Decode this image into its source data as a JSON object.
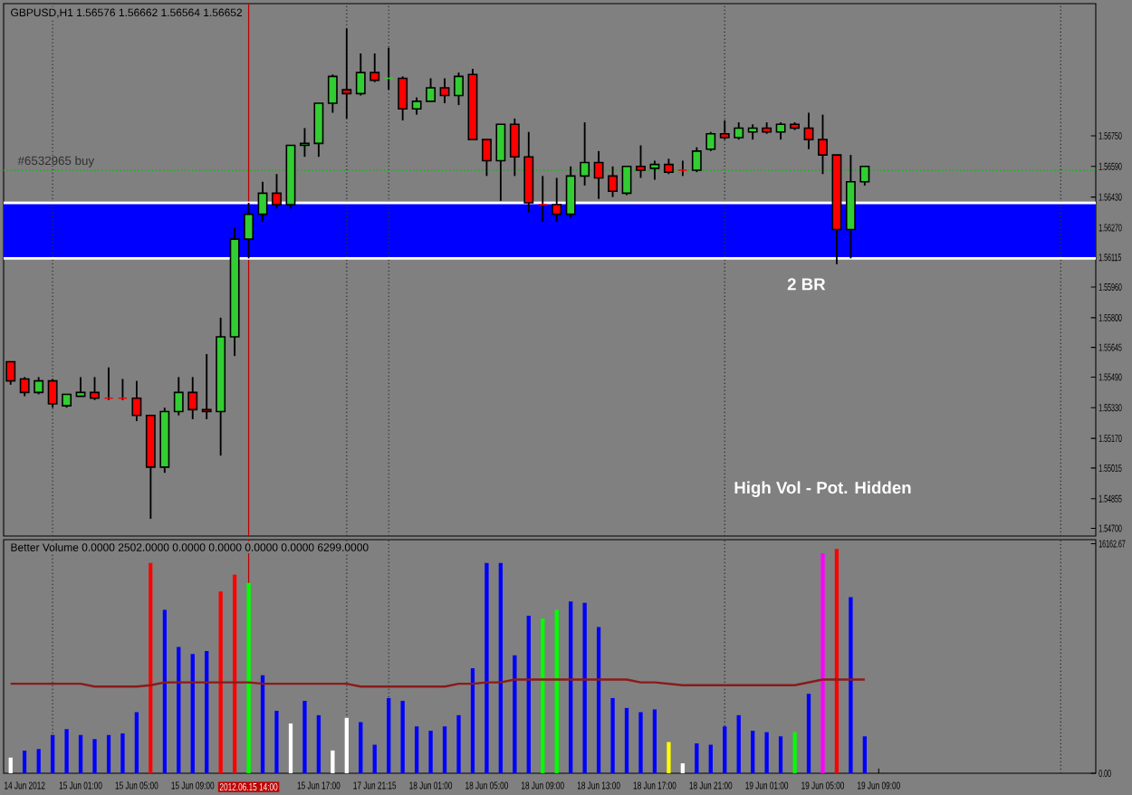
{
  "chart_data": [
    {
      "type": "candlestick",
      "title": "GBPUSD,H1 1.56576 1.56662 1.56564 1.56652",
      "categories": [
        null,
        null,
        null,
        null,
        null,
        null,
        null,
        null,
        null,
        null,
        null,
        null,
        null,
        null,
        null,
        null,
        null,
        null,
        null,
        null,
        null,
        null,
        null,
        null,
        null,
        null,
        null,
        null,
        null,
        null,
        null,
        null,
        null,
        null,
        null,
        null,
        null,
        null,
        null,
        null,
        null,
        null,
        null,
        null,
        null,
        null,
        null,
        null,
        null,
        null,
        null,
        null,
        null,
        null,
        null,
        null,
        null,
        null,
        null,
        null,
        null,
        null,
        null,
        null,
        null,
        null,
        null,
        null,
        null,
        null,
        null,
        null,
        null,
        null,
        null,
        null,
        null,
        null
      ],
      "ohlc": [
        [
          1.5557,
          1.5557,
          1.5545,
          1.5547
        ],
        [
          1.5548,
          1.5549,
          1.5539,
          1.5541
        ],
        [
          1.5541,
          1.5549,
          1.554,
          1.5547
        ],
        [
          1.5547,
          1.5548,
          1.5533,
          1.5535
        ],
        [
          1.5534,
          1.554,
          1.5533,
          1.554
        ],
        [
          1.5539,
          1.5549,
          1.5539,
          1.5541
        ],
        [
          1.5541,
          1.5549,
          1.5537,
          1.5538
        ],
        [
          1.5538,
          1.5554,
          1.5537,
          1.5538
        ],
        [
          1.5538,
          1.5548,
          1.5537,
          1.5538
        ],
        [
          1.5538,
          1.5547,
          1.5526,
          1.5529
        ],
        [
          1.5529,
          1.5529,
          1.5475,
          1.5502
        ],
        [
          1.5502,
          1.5533,
          1.5499,
          1.5531
        ],
        [
          1.5531,
          1.5549,
          1.5529,
          1.5541
        ],
        [
          1.5541,
          1.5549,
          1.5527,
          1.5532
        ],
        [
          1.5532,
          1.5561,
          1.5527,
          1.5531
        ],
        [
          1.5531,
          1.558,
          1.5508,
          1.557
        ],
        [
          1.557,
          1.5627,
          1.556,
          1.5621
        ],
        [
          1.5621,
          1.564,
          1.5611,
          1.5634
        ],
        [
          1.5634,
          1.5651,
          1.563,
          1.5645
        ],
        [
          1.5645,
          1.5655,
          1.5637,
          1.5639
        ],
        [
          1.5639,
          1.567,
          1.5637,
          1.567
        ],
        [
          1.567,
          1.5679,
          1.5664,
          1.5671
        ],
        [
          1.5671,
          1.5692,
          1.5664,
          1.5692
        ],
        [
          1.5692,
          1.5707,
          1.5687,
          1.5706
        ],
        [
          1.5699,
          1.5731,
          1.5684,
          1.5697
        ],
        [
          1.5697,
          1.5718,
          1.5696,
          1.5708
        ],
        [
          1.5708,
          1.5718,
          1.5703,
          1.5704
        ],
        [
          1.5705,
          1.5721,
          1.5699,
          1.5705
        ],
        [
          1.5705,
          1.5706,
          1.5683,
          1.5689
        ],
        [
          1.5689,
          1.5695,
          1.5686,
          1.5693
        ],
        [
          1.5693,
          1.5705,
          1.5693,
          1.57
        ],
        [
          1.57,
          1.5705,
          1.5692,
          1.5696
        ],
        [
          1.5696,
          1.5708,
          1.5691,
          1.5706
        ],
        [
          1.5707,
          1.571,
          1.5673,
          1.5673
        ],
        [
          1.5673,
          1.5673,
          1.5654,
          1.5662
        ],
        [
          1.5662,
          1.5681,
          1.5641,
          1.5681
        ],
        [
          1.5681,
          1.5684,
          1.5654,
          1.5664
        ],
        [
          1.5664,
          1.5677,
          1.5635,
          1.564
        ],
        [
          1.5639,
          1.5654,
          1.563,
          1.5639
        ],
        [
          1.5639,
          1.5653,
          1.563,
          1.5634
        ],
        [
          1.5634,
          1.5659,
          1.5632,
          1.5654
        ],
        [
          1.5654,
          1.5682,
          1.5649,
          1.5661
        ],
        [
          1.5661,
          1.5667,
          1.5642,
          1.5653
        ],
        [
          1.5654,
          1.5659,
          1.5643,
          1.5646
        ],
        [
          1.5645,
          1.5659,
          1.5644,
          1.5659
        ],
        [
          1.5659,
          1.567,
          1.5653,
          1.5657
        ],
        [
          1.5658,
          1.5662,
          1.5652,
          1.566
        ],
        [
          1.566,
          1.5663,
          1.5655,
          1.5656
        ],
        [
          1.5657,
          1.5662,
          1.5654,
          1.5657
        ],
        [
          1.5657,
          1.5669,
          1.5656,
          1.5667
        ],
        [
          1.5668,
          1.5677,
          1.5667,
          1.5676
        ],
        [
          1.5676,
          1.5683,
          1.5673,
          1.5674
        ],
        [
          1.5674,
          1.5682,
          1.5673,
          1.5679
        ],
        [
          1.5677,
          1.5681,
          1.5673,
          1.5679
        ],
        [
          1.5679,
          1.5682,
          1.5676,
          1.5677
        ],
        [
          1.5677,
          1.5682,
          1.5673,
          1.5681
        ],
        [
          1.5681,
          1.5682,
          1.5678,
          1.5679
        ],
        [
          1.5679,
          1.5687,
          1.5668,
          1.5673
        ],
        [
          1.5673,
          1.5686,
          1.5655,
          1.5665
        ],
        [
          1.5665,
          1.5665,
          1.5608,
          1.5626
        ],
        [
          1.5626,
          1.5665,
          1.5611,
          1.5651
        ],
        [
          1.5651,
          1.5659,
          1.5649,
          1.5659
        ],
        null,
        null,
        null,
        null,
        null,
        null,
        null,
        null,
        null,
        null,
        null,
        null,
        null,
        null,
        null,
        null
      ],
      "colors": [
        "#ff0000",
        "#ff0000",
        "#32cd32",
        "#ff0000",
        "#32cd32",
        "#32cd32",
        "#ff0000",
        "#ff0000",
        "#ff0000",
        "#ff0000",
        "#ff0000",
        "#32cd32",
        "#32cd32",
        "#ff0000",
        "#ff0000",
        "#32cd32",
        "#32cd32",
        "#32cd32",
        "#32cd32",
        "#ff0000",
        "#32cd32",
        "#32cd32",
        "#32cd32",
        "#32cd32",
        "#ff0000",
        "#32cd32",
        "#ff0000",
        "#32cd32",
        "#ff0000",
        "#32cd32",
        "#32cd32",
        "#ff0000",
        "#32cd32",
        "#ff0000",
        "#ff0000",
        "#32cd32",
        "#ff0000",
        "#ff0000",
        "#ff0000",
        "#ff0000",
        "#32cd32",
        "#32cd32",
        "#ff0000",
        "#ff0000",
        "#32cd32",
        "#ff0000",
        "#32cd32",
        "#ff0000",
        "#ff0000",
        "#32cd32",
        "#32cd32",
        "#ff0000",
        "#32cd32",
        "#32cd32",
        "#ff0000",
        "#32cd32",
        "#ff0000",
        "#ff0000",
        "#ff0000",
        "#ff0000",
        "#32cd32",
        "#32cd32",
        null,
        null,
        null,
        null,
        null,
        null,
        null,
        null,
        null,
        null,
        null,
        null,
        null,
        null,
        null,
        null
      ],
      "ylim": [
        1.5466,
        1.5744
      ],
      "yticks": [
        {
          "value": 1.5675,
          "label": "1.56750"
        },
        {
          "value": 1.5659,
          "label": "1.56590"
        },
        {
          "value": 1.5643,
          "label": "1.56430"
        },
        {
          "value": 1.5627,
          "label": "1.56270"
        },
        {
          "value": 1.56115,
          "label": "1.56115"
        },
        {
          "value": 1.5596,
          "label": "1.55960"
        },
        {
          "value": 1.558,
          "label": "1.55800"
        },
        {
          "value": 1.55645,
          "label": "1.55645"
        },
        {
          "value": 1.5549,
          "label": "1.55490"
        },
        {
          "value": 1.5533,
          "label": "1.55330"
        },
        {
          "value": 1.5517,
          "label": "1.55170"
        },
        {
          "value": 1.55015,
          "label": "1.55015"
        },
        {
          "value": 1.54855,
          "label": "1.54855"
        },
        {
          "value": 1.547,
          "label": "1.54700"
        }
      ],
      "tick_labels": "y",
      "grid": "x",
      "bands": [
        {
          "axis": "y",
          "from": 1.5611,
          "to": 1.564,
          "color": "#0000ff"
        }
      ],
      "ref_lines": [
        {
          "axis": "y",
          "value": 1.5657,
          "color": "#00c000",
          "line_style": "dotted",
          "label": "#6532965 buy"
        },
        {
          "axis": "y",
          "value": 1.564,
          "color": "#ffffff",
          "line_style": "solid"
        },
        {
          "axis": "y",
          "value": 1.5611,
          "color": "#ffffff",
          "line_style": "solid"
        }
      ],
      "annotations": [
        "2 BR",
        "High Vol - Pot. Hidden"
      ]
    },
    {
      "type": "bar",
      "title": "Better Volume 0.0000 2502.0000 0.0000 0.0000 0.0000 0.0000 6299.0000",
      "categories": [
        null,
        "14 Jun 2012",
        null,
        null,
        null,
        "15 Jun 01:00",
        null,
        null,
        null,
        "15 Jun 05:00",
        null,
        null,
        null,
        "15 Jun 09:00",
        null,
        null,
        null,
        "2012.06.15 14:00",
        null,
        null,
        null,
        null,
        "15 Jun 17:00",
        null,
        null,
        null,
        "17 Jun 21:15",
        null,
        null,
        null,
        "18 Jun 01:00",
        null,
        null,
        null,
        "18 Jun 05:00",
        null,
        null,
        null,
        "18 Jun 09:00",
        null,
        null,
        null,
        "18 Jun 13:00",
        null,
        null,
        null,
        "18 Jun 17:00",
        null,
        null,
        null,
        "18 Jun 21:00",
        null,
        null,
        null,
        "19 Jun 01:00",
        null,
        null,
        null,
        "19 Jun 05:00",
        null,
        null,
        null,
        "19 Jun 09:00",
        null,
        null,
        null,
        null,
        null,
        null,
        null,
        null,
        null,
        null,
        null,
        null,
        null,
        null,
        null
      ],
      "grid": "x",
      "series": [
        {
          "type": "bar",
          "values": [
            1100,
            1600,
            1700,
            2700,
            3100,
            2700,
            2400,
            2700,
            2800,
            4300,
            14800,
            11500,
            8900,
            8400,
            8600,
            12800,
            14000,
            13400,
            6900,
            4400,
            3500,
            5100,
            4100,
            1600,
            3900,
            3600,
            2000,
            5300,
            5100,
            3300,
            3000,
            3300,
            4100,
            7400,
            14800,
            14800,
            8300,
            11100,
            10900,
            11500,
            12100,
            12000,
            10300,
            5300,
            4600,
            4300,
            4500,
            2200,
            700,
            2100,
            2000,
            3300,
            4100,
            3000,
            2900,
            2600,
            2900,
            5600,
            15500,
            15800,
            12400,
            2600,
            null,
            null,
            null,
            null,
            null,
            null,
            null,
            null,
            null,
            null,
            null,
            null,
            null,
            null,
            null,
            null
          ],
          "colors": [
            "#ffffff",
            "#0000ff",
            "#0000ff",
            "#0000ff",
            "#0000ff",
            "#0000ff",
            "#0000ff",
            "#0000ff",
            "#0000ff",
            "#0000ff",
            "#ff0000",
            "#0000ff",
            "#0000ff",
            "#0000ff",
            "#0000ff",
            "#ff0000",
            "#ff0000",
            "#00ff00",
            "#0000ff",
            "#0000ff",
            "#ffffff",
            "#0000ff",
            "#0000ff",
            "#ffffff",
            "#ffffff",
            "#0000ff",
            "#0000ff",
            "#0000ff",
            "#0000ff",
            "#0000ff",
            "#0000ff",
            "#0000ff",
            "#0000ff",
            "#0000ff",
            "#0000ff",
            "#0000ff",
            "#0000ff",
            "#0000ff",
            "#00ff00",
            "#00ff00",
            "#0000ff",
            "#0000ff",
            "#0000ff",
            "#0000ff",
            "#0000ff",
            "#0000ff",
            "#0000ff",
            "#ffff00",
            "#ffffff",
            "#0000ff",
            "#0000ff",
            "#0000ff",
            "#0000ff",
            "#0000ff",
            "#0000ff",
            "#0000ff",
            "#00ff00",
            "#0000ff",
            "#ff00ff",
            "#ff0000",
            "#0000ff",
            "#0000ff",
            null,
            null,
            null,
            null,
            null,
            null,
            null,
            null,
            null,
            null,
            null,
            null,
            null,
            null,
            null,
            null
          ]
        },
        {
          "type": "line",
          "color": "#8b1a1a",
          "values": [
            6300,
            6300,
            6300,
            6300,
            6300,
            6300,
            6100,
            6100,
            6100,
            6100,
            6200,
            6400,
            6400,
            6400,
            6400,
            6400,
            6400,
            6400,
            6300,
            6300,
            6300,
            6300,
            6300,
            6300,
            6300,
            6100,
            6100,
            6100,
            6100,
            6100,
            6100,
            6100,
            6300,
            6300,
            6400,
            6400,
            6600,
            6600,
            6600,
            6600,
            6600,
            6600,
            6600,
            6600,
            6600,
            6400,
            6400,
            6300,
            6200,
            6200,
            6200,
            6200,
            6200,
            6200,
            6200,
            6200,
            6200,
            6400,
            6600,
            6600,
            6600,
            6600,
            null,
            null,
            null,
            null,
            null,
            null,
            null,
            null,
            null,
            null,
            null,
            null,
            null,
            null,
            null,
            null
          ]
        }
      ],
      "ylim": [
        0,
        16450
      ],
      "yticks": [
        {
          "value": 0,
          "label": "0.00"
        },
        {
          "value": 16162.67,
          "label": "16162.67"
        }
      ],
      "ref_lines": [
        {
          "axis": "x",
          "value": "2012.06.15 14:00",
          "color": "#c00000",
          "line_style": "solid"
        }
      ]
    }
  ]
}
